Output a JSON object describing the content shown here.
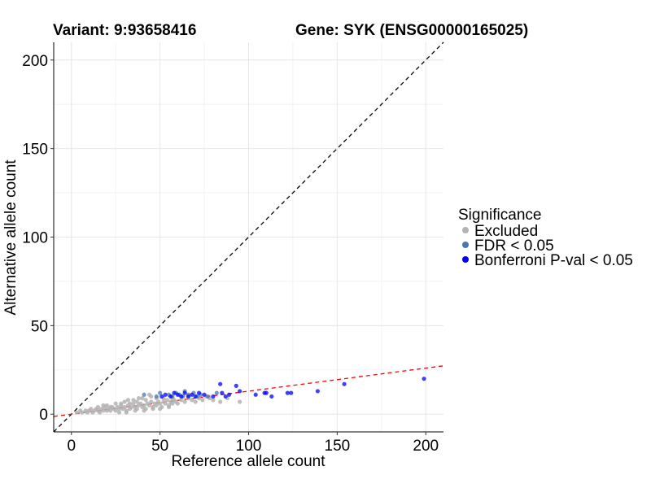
{
  "chart_data": {
    "type": "scatter",
    "title_variant": "Variant: 9:93658416",
    "title_gene": "Gene: SYK (ENSG00000165025)",
    "xlabel": "Reference allele count",
    "ylabel": "Alternative allele count",
    "xlim": [
      -10,
      210
    ],
    "ylim": [
      -10,
      210
    ],
    "xticks": [
      0,
      50,
      100,
      150,
      200
    ],
    "yticks": [
      0,
      50,
      100,
      150,
      200
    ],
    "grid": true,
    "legend": {
      "title": "Significance",
      "position": "right",
      "items": [
        {
          "label": "Excluded",
          "color": "#b3b3b3"
        },
        {
          "label": "FDR < 0.05",
          "color": "#4a78ad"
        },
        {
          "label": "Bonferroni P-val < 0.05",
          "color": "#0000ff"
        }
      ]
    },
    "reference_lines": [
      {
        "name": "identity",
        "slope": 1,
        "intercept": 0,
        "color": "#000000"
      },
      {
        "name": "fit",
        "slope": 0.13,
        "intercept": 0,
        "color": "#ff0000"
      }
    ],
    "series": [
      {
        "name": "Excluded",
        "color": "#b3b3b3",
        "points": [
          [
            3,
            1
          ],
          [
            5,
            2
          ],
          [
            6,
            1
          ],
          [
            8,
            2
          ],
          [
            9,
            1
          ],
          [
            10,
            2
          ],
          [
            11,
            3
          ],
          [
            12,
            1
          ],
          [
            13,
            2
          ],
          [
            14,
            3
          ],
          [
            15,
            2
          ],
          [
            16,
            1
          ],
          [
            17,
            3
          ],
          [
            18,
            2
          ],
          [
            19,
            4
          ],
          [
            20,
            2
          ],
          [
            21,
            3
          ],
          [
            22,
            2
          ],
          [
            23,
            4
          ],
          [
            24,
            3
          ],
          [
            25,
            2
          ],
          [
            26,
            4
          ],
          [
            27,
            3
          ],
          [
            28,
            5
          ],
          [
            29,
            3
          ],
          [
            30,
            4
          ],
          [
            31,
            2
          ],
          [
            32,
            5
          ],
          [
            33,
            3
          ],
          [
            34,
            4
          ],
          [
            35,
            6
          ],
          [
            36,
            4
          ],
          [
            37,
            3
          ],
          [
            38,
            5
          ],
          [
            39,
            6
          ],
          [
            40,
            4
          ],
          [
            41,
            5
          ],
          [
            42,
            3
          ],
          [
            43,
            6
          ],
          [
            44,
            5
          ],
          [
            45,
            7
          ],
          [
            46,
            4
          ],
          [
            47,
            6
          ],
          [
            48,
            5
          ],
          [
            49,
            7
          ],
          [
            50,
            6
          ],
          [
            51,
            4
          ],
          [
            52,
            7
          ],
          [
            53,
            6
          ],
          [
            54,
            8
          ],
          [
            55,
            5
          ],
          [
            56,
            7
          ],
          [
            57,
            6
          ],
          [
            58,
            8
          ],
          [
            59,
            7
          ],
          [
            60,
            6
          ],
          [
            62,
            8
          ],
          [
            64,
            7
          ],
          [
            66,
            9
          ],
          [
            68,
            8
          ],
          [
            70,
            7
          ],
          [
            72,
            9
          ],
          [
            74,
            8
          ],
          [
            76,
            10
          ],
          [
            78,
            9
          ],
          [
            80,
            8
          ],
          [
            84,
            7
          ],
          [
            88,
            9
          ],
          [
            95,
            7
          ],
          [
            20,
            5
          ],
          [
            25,
            6
          ],
          [
            30,
            7
          ],
          [
            35,
            8
          ],
          [
            40,
            9
          ],
          [
            45,
            10
          ],
          [
            33,
            6
          ],
          [
            37,
            7
          ],
          [
            28,
            6
          ],
          [
            42,
            8
          ],
          [
            48,
            9
          ],
          [
            52,
            9
          ],
          [
            57,
            9
          ],
          [
            27,
            1
          ],
          [
            31,
            1
          ],
          [
            36,
            2
          ],
          [
            41,
            2
          ],
          [
            46,
            3
          ],
          [
            50,
            3
          ],
          [
            55,
            4
          ],
          [
            22,
            4
          ],
          [
            18,
            5
          ],
          [
            15,
            4
          ],
          [
            32,
            8
          ],
          [
            38,
            9
          ],
          [
            44,
            11
          ]
        ]
      },
      {
        "name": "FDR < 0.05",
        "color": "#4a78ad",
        "points": [
          [
            41,
            11
          ],
          [
            48,
            10
          ],
          [
            50,
            12
          ],
          [
            55,
            11
          ],
          [
            57,
            10
          ],
          [
            59,
            12
          ],
          [
            61,
            11
          ],
          [
            63,
            10
          ],
          [
            64,
            13
          ],
          [
            66,
            11
          ],
          [
            69,
            12
          ],
          [
            71,
            10
          ],
          [
            73,
            11
          ],
          [
            77,
            10
          ],
          [
            82,
            12
          ]
        ]
      },
      {
        "name": "Bonferroni P-val < 0.05",
        "color": "#0000ff",
        "points": [
          [
            51,
            10
          ],
          [
            53,
            11
          ],
          [
            56,
            10
          ],
          [
            58,
            12
          ],
          [
            60,
            11
          ],
          [
            62,
            10
          ],
          [
            64,
            12
          ],
          [
            66,
            10
          ],
          [
            68,
            11
          ],
          [
            70,
            10
          ],
          [
            72,
            12
          ],
          [
            75,
            11
          ],
          [
            80,
            10
          ],
          [
            84,
            17
          ],
          [
            85,
            12
          ],
          [
            87,
            10
          ],
          [
            89,
            11
          ],
          [
            93,
            16
          ],
          [
            95,
            13
          ],
          [
            104,
            11
          ],
          [
            109,
            12
          ],
          [
            110,
            12
          ],
          [
            113,
            10
          ],
          [
            122,
            12
          ],
          [
            124,
            12
          ],
          [
            139,
            13
          ],
          [
            154,
            17
          ],
          [
            199,
            20
          ]
        ]
      }
    ]
  }
}
